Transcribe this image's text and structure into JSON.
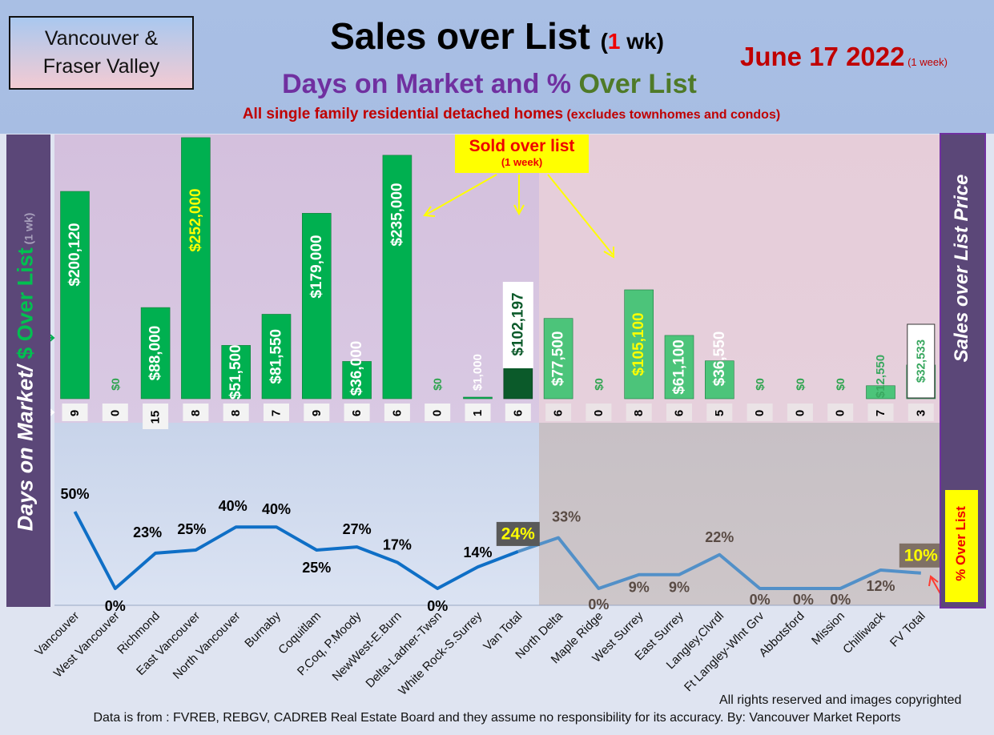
{
  "header": {
    "region": "Vancouver & Fraser Valley",
    "title_main": "Sales over List",
    "title_paren_open": "(",
    "title_one": "1",
    "title_wk": " wk)",
    "subtitle_a": "Days on Market and % ",
    "subtitle_b": "Over List",
    "desc_a": "All single family residential detached homes",
    "desc_b": " (excludes townhomes and condos)",
    "date": "June 17  2022",
    "date_small": " (1 week)"
  },
  "labels": {
    "left_a": "Days on Market/",
    "left_b": " $ Over List",
    "left_c": " (1 wk)",
    "right": "Sales over List Price",
    "overlist_box": "% Over List",
    "callout_a": "Sold over list",
    "callout_b": "(1 week)"
  },
  "footer": {
    "copyright": "All rights reserved and  images copyrighted",
    "source": "Data is from : FVREB, REBGV, CADREB Real Estate Board and they assume no responsibility for its accuracy. By: Vancouver Market Reports"
  },
  "colors": {
    "bar_green": "#00b050",
    "bar_light": "#4cc47a",
    "bar_dark": "#0b5a2a",
    "line_left": "#0f6fc6",
    "line_right": "#5290c8",
    "bg_top_left": "#d9c5e0",
    "bg_top_right": "#e8d0dc",
    "bg_bottom_left": "#c6d3e9",
    "bg_bottom_right": "#c9c1c4"
  },
  "chart_data": {
    "type": "bar+line",
    "categories": [
      "Vancouver",
      "West Vancouver",
      "Richmond",
      "East Vancouver",
      "North Vancouver",
      "Burnaby",
      "Coquitlam",
      "P.Coq, P.Moody",
      "NewWest-E.Burn",
      "Delta-Ladner-Twsn",
      "White Rock-S.Surrey",
      "Van Total",
      "North Delta",
      "Maple Ridge",
      "West Surrey",
      "East Surrey",
      "Langley,Clvrdl",
      "Ft Langley-Wlnt Grv",
      "Abbotsford",
      "Mission",
      "Chilliwack",
      "FV Total"
    ],
    "over_list_dollars": [
      200120,
      0,
      88000,
      252000,
      51500,
      81550,
      179000,
      36000,
      235000,
      0,
      1000,
      102197,
      77500,
      0,
      105100,
      61100,
      36550,
      0,
      0,
      0,
      12550,
      32533
    ],
    "over_list_labels": [
      "$200,120",
      "$0",
      "$88,000",
      "$252,000",
      "$51,500",
      "$81,550",
      "$179,000",
      "$36,000",
      "$235,000",
      "$0",
      "$1,000",
      "$102,197",
      "$77,500",
      "$0",
      "$105,100",
      "$61,100",
      "$36,550",
      "$0",
      "$0",
      "$0",
      "$12,550",
      "$32,533"
    ],
    "days_on_market": [
      "9",
      "0",
      "15",
      "8",
      "8",
      "7",
      "9",
      "6",
      "6",
      "0",
      "1",
      "6",
      "6",
      "0",
      "8",
      "6",
      "5",
      "0",
      "0",
      "0",
      "7",
      "3"
    ],
    "pct_over_list": [
      50,
      0,
      23,
      25,
      40,
      40,
      25,
      27,
      17,
      0,
      14,
      24,
      33,
      0,
      9,
      9,
      22,
      0,
      0,
      0,
      12,
      10
    ],
    "pct_labels": [
      "50%",
      "0%",
      "23%",
      "25%",
      "40%",
      "40%",
      "25%",
      "27%",
      "17%",
      "0%",
      "14%",
      "24%",
      "33%",
      "0%",
      "9%",
      "9%",
      "22%",
      "0%",
      "0%",
      "0%",
      "12%",
      "10%"
    ],
    "bar_axis_max": 255000,
    "pct_axis_max": 60
  }
}
